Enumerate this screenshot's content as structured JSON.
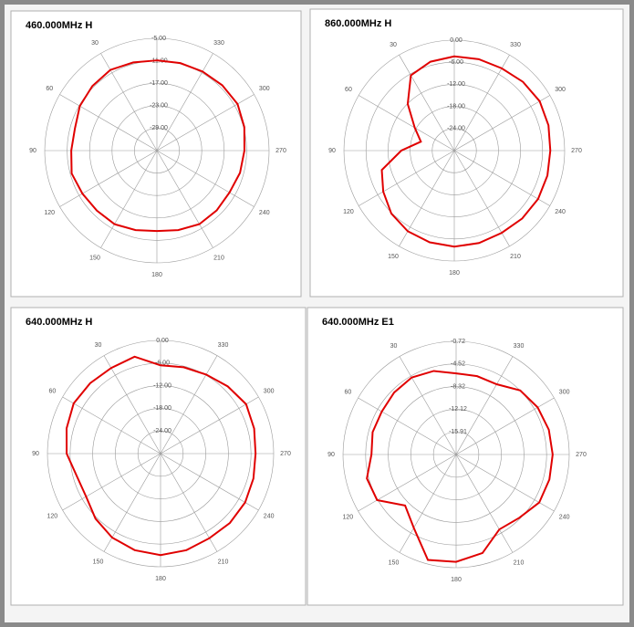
{
  "chart_data": [
    {
      "type": "polar",
      "title": "460.000MHz  H",
      "color": "#e00000",
      "theta": [
        0,
        15,
        30,
        45,
        60,
        75,
        90,
        105,
        120,
        135,
        150,
        165,
        180,
        195,
        210,
        225,
        240,
        255,
        270,
        285,
        300,
        315,
        330,
        345
      ],
      "values": [
        -10.9,
        -10.6,
        -10.1,
        -10.6,
        -11.2,
        -12.3,
        -12.1,
        -11.4,
        -12.0,
        -12.3,
        -12.3,
        -13.0,
        -13.5,
        -13.0,
        -12.3,
        -12.4,
        -12.6,
        -12.0,
        -11.6,
        -10.8,
        -10.1,
        -10.3,
        -10.6,
        -10.8
      ],
      "rlim": [
        -35,
        -5
      ],
      "rticks": [
        {
          "value": -5,
          "label": "-5.00"
        },
        {
          "value": -11,
          "label": "-11.00"
        },
        {
          "value": -17,
          "label": "-17.00"
        },
        {
          "value": -23,
          "label": "-23.00"
        },
        {
          "value": -29,
          "label": "-29.00"
        }
      ],
      "thetaticks": [
        30,
        60,
        90,
        120,
        150,
        180,
        210,
        240,
        270,
        300,
        330
      ]
    },
    {
      "type": "polar",
      "title": "860.000MHz  H",
      "color": "#e00000",
      "theta": [
        0,
        15,
        30,
        45,
        60,
        75,
        90,
        105,
        120,
        135,
        150,
        165,
        180,
        195,
        210,
        225,
        240,
        255,
        270,
        285,
        300,
        315,
        330,
        345
      ],
      "values": [
        -4.4,
        -5.0,
        -6.4,
        -12.1,
        -17.6,
        -20.6,
        -15.6,
        -9.6,
        -7.7,
        -5.8,
        -4.7,
        -4.2,
        -3.9,
        -4.0,
        -4.2,
        -3.9,
        -3.7,
        -3.8,
        -3.9,
        -3.5,
        -3.2,
        -3.6,
        -4.2,
        -4.3
      ],
      "rlim": [
        -30,
        0
      ],
      "rticks": [
        {
          "value": 0,
          "label": "0.00"
        },
        {
          "value": -6,
          "label": "-6.00"
        },
        {
          "value": -12,
          "label": "-12.00"
        },
        {
          "value": -18,
          "label": "-18.00"
        },
        {
          "value": -24,
          "label": "-24.00"
        }
      ],
      "thetaticks": [
        30,
        60,
        90,
        120,
        150,
        180,
        210,
        240,
        270,
        300,
        330
      ]
    },
    {
      "type": "polar",
      "title": "640.000MHz  H",
      "color": "#e00000",
      "theta": [
        0,
        15,
        30,
        45,
        60,
        75,
        90,
        105,
        120,
        135,
        150,
        165,
        180,
        195,
        210,
        225,
        240,
        255,
        270,
        285,
        300,
        315,
        330,
        345
      ],
      "values": [
        -6.6,
        -3.4,
        -3.8,
        -3.6,
        -3.4,
        -4.2,
        -5.1,
        -7.0,
        -7.2,
        -5.6,
        -4.3,
        -3.5,
        -3.1,
        -3.5,
        -4.1,
        -4.0,
        -4.1,
        -4.5,
        -4.8,
        -4.3,
        -3.8,
        -4.8,
        -5.8,
        -6.3
      ],
      "rlim": [
        -30,
        0
      ],
      "rticks": [
        {
          "value": 0,
          "label": "0.00"
        },
        {
          "value": -6,
          "label": "-6.00"
        },
        {
          "value": -12,
          "label": "-12.00"
        },
        {
          "value": -18,
          "label": "-18.00"
        },
        {
          "value": -24,
          "label": "-24.00"
        }
      ],
      "thetaticks": [
        30,
        60,
        90,
        120,
        150,
        180,
        210,
        240,
        270,
        300,
        330
      ]
    },
    {
      "type": "polar",
      "title": "640.000MHz  E1",
      "color": "#e00000",
      "theta": [
        0,
        15,
        30,
        45,
        60,
        75,
        90,
        105,
        120,
        135,
        150,
        165,
        180,
        195,
        210,
        225,
        240,
        255,
        270,
        285,
        300,
        315,
        330,
        345
      ],
      "values": [
        -6.1,
        -5.2,
        -4.8,
        -5.0,
        -5.3,
        -5.2,
        -5.5,
        -4.2,
        -4.4,
        -7.6,
        -5.5,
        -1.4,
        -1.7,
        -2.6,
        -5.2,
        -4.7,
        -3.6,
        -3.5,
        -3.5,
        -3.6,
        -3.9,
        -4.5,
        -6.1,
        -6.1
      ],
      "rlim": [
        -19.72,
        -0.72
      ],
      "rticks": [
        -0.72,
        -4.52,
        -8.32,
        -12.12,
        -15.91
      ],
      "thetaticks": [
        30,
        60,
        90,
        120,
        150,
        180,
        210,
        240,
        270,
        300,
        330
      ]
    }
  ]
}
